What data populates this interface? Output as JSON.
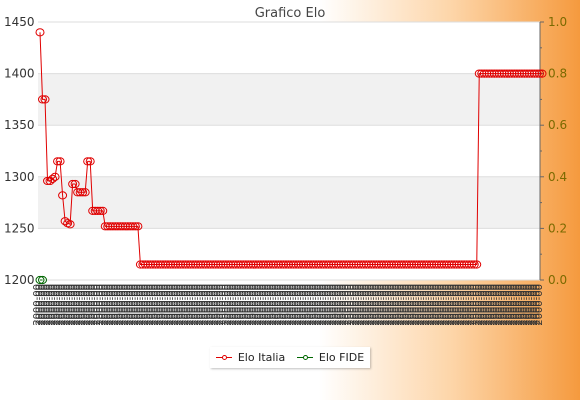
{
  "chart_data": {
    "type": "line",
    "title": "Grafico Elo",
    "x_tick_label_pattern": "2000-00",
    "left_axis": {
      "min": 1200,
      "max": 1450,
      "ticks": [
        "1200",
        "1250",
        "1300",
        "1350",
        "1400",
        "1450"
      ]
    },
    "right_axis": {
      "min": 0,
      "max": 1,
      "ticks": [
        "0.0",
        "0.2",
        "0.4",
        "0.6",
        "0.8",
        "1.0"
      ]
    },
    "grid": true,
    "legend_position": "bottom",
    "series": [
      {
        "name": "Elo Italia",
        "color": "#e00000",
        "axis": "left",
        "values": [
          1440,
          1375,
          1375,
          1296,
          1296,
          1298,
          1300,
          1315,
          1315,
          1282,
          1257,
          1255,
          1254,
          1293,
          1293,
          1285,
          1285,
          1285,
          1285,
          1315,
          1315,
          1267,
          1267,
          1267,
          1267,
          1267,
          1252,
          1252,
          1252,
          1252,
          1252,
          1252,
          1252,
          1252,
          1252,
          1252,
          1252,
          1252,
          1252,
          1252,
          1215,
          1215,
          1215,
          1215,
          1215,
          1215,
          1215,
          1215,
          1215,
          1215,
          1215,
          1215,
          1215,
          1215,
          1215,
          1215,
          1215,
          1215,
          1215,
          1215,
          1215,
          1215,
          1215,
          1215,
          1215,
          1215,
          1215,
          1215,
          1215,
          1215,
          1215,
          1215,
          1215,
          1215,
          1215,
          1215,
          1215,
          1215,
          1215,
          1215,
          1215,
          1215,
          1215,
          1215,
          1215,
          1215,
          1215,
          1215,
          1215,
          1215,
          1215,
          1215,
          1215,
          1215,
          1215,
          1215,
          1215,
          1215,
          1215,
          1215,
          1215,
          1215,
          1215,
          1215,
          1215,
          1215,
          1215,
          1215,
          1215,
          1215,
          1215,
          1215,
          1215,
          1215,
          1215,
          1215,
          1215,
          1215,
          1215,
          1215,
          1215,
          1215,
          1215,
          1215,
          1215,
          1215,
          1215,
          1215,
          1215,
          1215,
          1215,
          1215,
          1215,
          1215,
          1215,
          1215,
          1215,
          1215,
          1215,
          1215,
          1215,
          1215,
          1215,
          1215,
          1215,
          1215,
          1215,
          1215,
          1215,
          1215,
          1215,
          1215,
          1215,
          1215,
          1215,
          1215,
          1215,
          1215,
          1215,
          1215,
          1215,
          1215,
          1215,
          1215,
          1215,
          1215,
          1215,
          1215,
          1215,
          1215,
          1215,
          1215,
          1215,
          1215,
          1215,
          1400,
          1400,
          1400,
          1400,
          1400,
          1400,
          1400,
          1400,
          1400,
          1400,
          1400,
          1400,
          1400,
          1400,
          1400,
          1400,
          1400,
          1400,
          1400,
          1400,
          1400,
          1400,
          1400,
          1400,
          1400,
          1400
        ]
      },
      {
        "name": "Elo FIDE",
        "color": "#006600",
        "axis": "right",
        "values": [
          0.0,
          0.0
        ]
      }
    ]
  }
}
